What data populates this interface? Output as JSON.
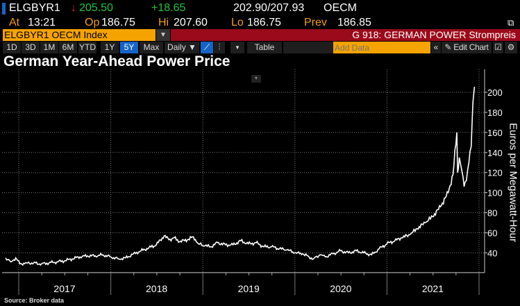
{
  "quote": {
    "ticker": "ELGBYR1",
    "last": "205.50",
    "change": "+18.65",
    "bid_ask": "202.90/207.93",
    "source": "OECM",
    "at_label": "At",
    "at": "13:21",
    "op_label": "Op",
    "op": "186.75",
    "hi_label": "Hi",
    "hi": "207.60",
    "lo_label": "Lo",
    "lo": "186.75",
    "prev_label": "Prev",
    "prev": "186.85"
  },
  "security": {
    "name": "ELGBYR1 OECM Index",
    "page": "G 918: GERMAN POWER Strompreis"
  },
  "toolbar": {
    "ranges": [
      "1D",
      "3D",
      "1M",
      "6M",
      "YTD",
      "1Y",
      "5Y",
      "Max"
    ],
    "selected_range": "5Y",
    "frequency": "Daily ▼",
    "table": "Table",
    "add_data_placeholder": "Add Data",
    "edit_chart": "✎ Edit Chart"
  },
  "colors": {
    "accent": "#f5a300",
    "banner": "#9b0a1a",
    "up": "#22c33a",
    "down": "#e0282e"
  },
  "chart_data": {
    "type": "line",
    "title": "German Year-Ahead Power Price",
    "ylabel": "Euros per Megawatt-Hour",
    "ylim": [
      20,
      215
    ],
    "yticks": [
      40,
      60,
      80,
      100,
      120,
      140,
      160,
      180,
      200
    ],
    "xticks": [
      "2017",
      "2018",
      "2019",
      "2020",
      "2021"
    ],
    "grid": true,
    "source": "Source: Broker data",
    "points": [
      [
        "2016-11-10",
        35
      ],
      [
        "2016-12-01",
        31
      ],
      [
        "2016-12-20",
        35
      ],
      [
        "2017-01-05",
        29
      ],
      [
        "2017-02-01",
        30
      ],
      [
        "2017-03-01",
        30
      ],
      [
        "2017-04-01",
        29
      ],
      [
        "2017-05-01",
        30
      ],
      [
        "2017-06-01",
        31
      ],
      [
        "2017-07-01",
        32
      ],
      [
        "2017-08-01",
        34
      ],
      [
        "2017-09-01",
        36
      ],
      [
        "2017-10-01",
        37
      ],
      [
        "2017-11-01",
        37
      ],
      [
        "2017-12-01",
        38
      ],
      [
        "2018-01-01",
        36
      ],
      [
        "2018-02-01",
        34
      ],
      [
        "2018-03-01",
        35
      ],
      [
        "2018-04-01",
        39
      ],
      [
        "2018-05-01",
        42
      ],
      [
        "2018-06-01",
        45
      ],
      [
        "2018-07-01",
        48
      ],
      [
        "2018-08-01",
        57
      ],
      [
        "2018-08-20",
        53
      ],
      [
        "2018-09-10",
        55
      ],
      [
        "2018-10-01",
        51
      ],
      [
        "2018-11-01",
        53
      ],
      [
        "2018-11-25",
        56
      ],
      [
        "2018-12-15",
        49
      ],
      [
        "2019-01-10",
        47
      ],
      [
        "2019-02-01",
        46
      ],
      [
        "2019-03-01",
        50
      ],
      [
        "2019-04-01",
        48
      ],
      [
        "2019-05-01",
        48
      ],
      [
        "2019-06-01",
        52
      ],
      [
        "2019-07-01",
        49
      ],
      [
        "2019-08-01",
        50
      ],
      [
        "2019-09-01",
        46
      ],
      [
        "2019-10-01",
        46
      ],
      [
        "2019-11-01",
        44
      ],
      [
        "2019-12-01",
        43
      ],
      [
        "2020-01-01",
        40
      ],
      [
        "2020-02-01",
        39
      ],
      [
        "2020-03-15",
        34
      ],
      [
        "2020-04-10",
        38
      ],
      [
        "2020-05-01",
        36
      ],
      [
        "2020-06-01",
        39
      ],
      [
        "2020-07-01",
        42
      ],
      [
        "2020-08-01",
        40
      ],
      [
        "2020-09-01",
        42
      ],
      [
        "2020-10-01",
        40
      ],
      [
        "2020-11-01",
        38
      ],
      [
        "2020-12-01",
        44
      ],
      [
        "2021-01-01",
        49
      ],
      [
        "2021-02-01",
        52
      ],
      [
        "2021-03-01",
        55
      ],
      [
        "2021-04-01",
        58
      ],
      [
        "2021-05-01",
        64
      ],
      [
        "2021-06-01",
        70
      ],
      [
        "2021-07-01",
        76
      ],
      [
        "2021-08-01",
        86
      ],
      [
        "2021-09-01",
        100
      ],
      [
        "2021-09-20",
        118
      ],
      [
        "2021-10-05",
        160
      ],
      [
        "2021-10-08",
        120
      ],
      [
        "2021-10-15",
        135
      ],
      [
        "2021-10-25",
        122
      ],
      [
        "2021-11-03",
        106
      ],
      [
        "2021-11-12",
        112
      ],
      [
        "2021-11-22",
        130
      ],
      [
        "2021-12-01",
        146
      ],
      [
        "2021-12-08",
        190
      ],
      [
        "2021-12-14",
        205.5
      ]
    ]
  }
}
